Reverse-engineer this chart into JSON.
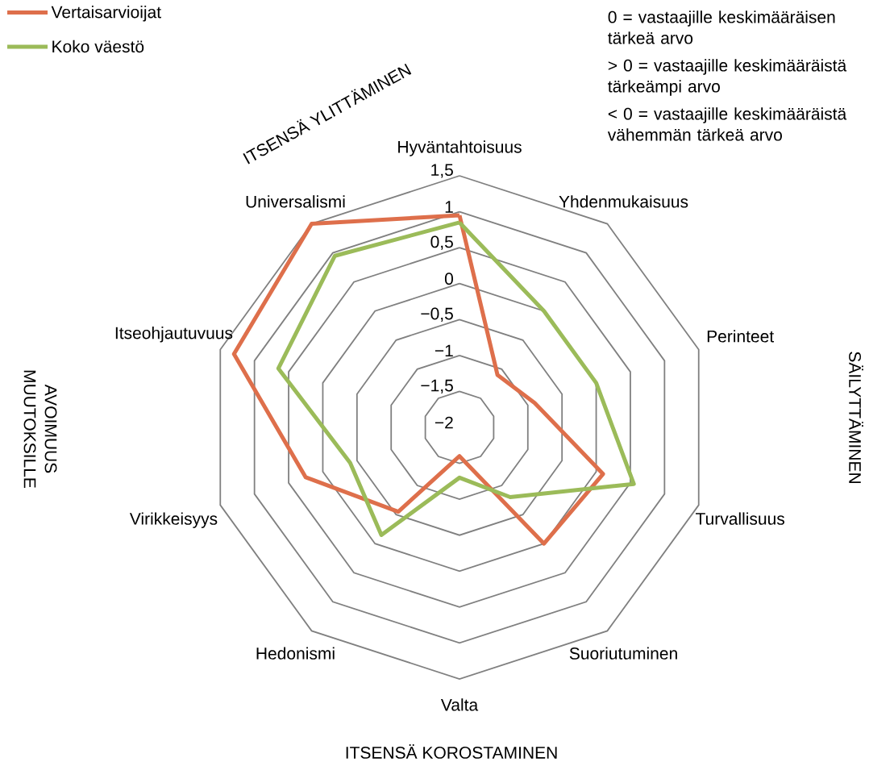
{
  "chart_data": {
    "type": "radar",
    "categories": [
      "Hyväntahtoisuus",
      "Yhdenmukaisuus",
      "Perinteet",
      "Turvallisuus",
      "Suoriutuminen",
      "Valta",
      "Hedonismi",
      "Virikkeisyys",
      "Itseohjautuvuus",
      "Universalismi"
    ],
    "ylim": [
      -2,
      1.5
    ],
    "yticks": [
      {
        "value": -2,
        "label": "−2"
      },
      {
        "value": -1.5,
        "label": "−1,5"
      },
      {
        "value": -1,
        "label": "−1"
      },
      {
        "value": -0.5,
        "label": "−0,5"
      },
      {
        "value": 0,
        "label": "0"
      },
      {
        "value": 0.5,
        "label": "0,5"
      },
      {
        "value": 1,
        "label": "1"
      },
      {
        "value": 1.5,
        "label": "1,5"
      }
    ],
    "grid": true,
    "legend": "top left",
    "marker": "none",
    "line_style": "solid",
    "series": [
      {
        "name": "Vertaisarvioijat",
        "color": "#de6f4b",
        "values": [
          0.95,
          -1.1,
          -0.9,
          0.1,
          0.0,
          -1.6,
          -0.55,
          0.25,
          1.3,
          1.5
        ]
      },
      {
        "name": "Koko väestö",
        "color": "#9bbb59",
        "values": [
          0.85,
          0.0,
          0.0,
          0.55,
          -0.8,
          -1.3,
          -0.15,
          -0.4,
          0.65,
          0.95
        ]
      }
    ],
    "annotations": [
      "0 = vastaajille keskimääräisen tärkeä arvo",
      "> 0 = vastaajille keskimääräistä tärkeämpi arvo",
      "< 0 = vastaajille keskimääräistä vähemmän tärkeä arvo",
      "ITSENSÄ YLITTÄMINEN",
      "SÄILYTTÄMINEN",
      "ITSENSÄ KOROSTAMINEN",
      "AVOIMUUS MUUTOKSILLE"
    ]
  }
}
